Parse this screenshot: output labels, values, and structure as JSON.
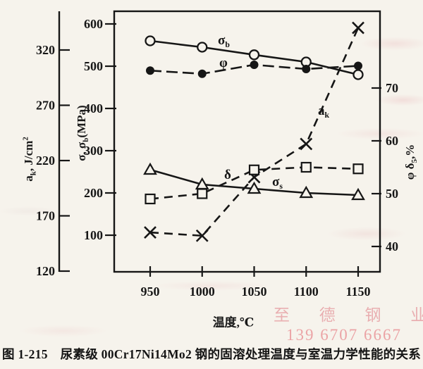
{
  "figure": {
    "caption": "图 1-215　尿素级 00Cr17Ni14Mo2 钢的固溶处理温度与室温力学性能的关系"
  },
  "watermark": {
    "line1": "至 德 钢 业",
    "line2": "139 6707 6667",
    "color": "#e0767f"
  },
  "chart_data": {
    "type": "line",
    "x": [
      950,
      1000,
      1050,
      1100,
      1150
    ],
    "x_tick_labels": [
      "950",
      "1000",
      "1050",
      "1100",
      "1150"
    ],
    "xlabel": "温度,℃",
    "grid": false,
    "legend_position": "inline-annotations",
    "axes": {
      "ak": {
        "label": "a_{k}, J/cm^{2}",
        "ticks": [
          320,
          270,
          220,
          170,
          120
        ],
        "range": [
          120,
          345
        ],
        "side": "outer-left",
        "units": "J/cm2"
      },
      "sigma": {
        "label": "σ, σ_{b}(MPa)",
        "ticks": [
          600,
          500,
          400,
          300,
          200,
          100
        ],
        "range": [
          15,
          630
        ],
        "side": "left",
        "units": "MPa"
      },
      "pct": {
        "label": "φ δ_{5},%",
        "ticks": [
          70,
          60,
          50,
          40
        ],
        "range": [
          38,
          85
        ],
        "side": "right",
        "units": "%"
      }
    },
    "series": [
      {
        "name": "sigma_b",
        "label": "σ_{b}",
        "axis": "sigma",
        "marker": "open-circle",
        "line": "solid",
        "values": [
          560,
          545,
          527,
          510,
          480
        ]
      },
      {
        "name": "phi",
        "label": "φ",
        "axis": "pct",
        "marker": "filled-circle",
        "line": "dashed",
        "values": [
          73.3,
          72.7,
          74.4,
          73.6,
          74.2
        ]
      },
      {
        "name": "a_k",
        "label": "a_{k}",
        "axis": "ak",
        "marker": "x-cross",
        "line": "dashed",
        "values": [
          155,
          152,
          205,
          235,
          340
        ]
      },
      {
        "name": "delta",
        "label": "δ",
        "axis": "pct",
        "marker": "open-square",
        "line": "dashed",
        "values": [
          49,
          50,
          54.5,
          55,
          54.7
        ]
      },
      {
        "name": "sigma_s",
        "label": "σ_{s}",
        "axis": "sigma",
        "marker": "open-triangle",
        "line": "solid",
        "values": [
          255,
          220,
          210,
          200,
          195
        ]
      }
    ]
  }
}
